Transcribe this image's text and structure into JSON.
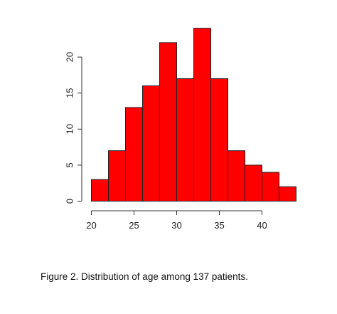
{
  "figure": {
    "caption": "Figure 2. Distribution of age among 137 patients."
  },
  "chart_data": {
    "type": "bar",
    "subtype": "histogram",
    "bin_width": 2,
    "bins": [
      {
        "start": 20,
        "end": 22,
        "count": 3
      },
      {
        "start": 22,
        "end": 24,
        "count": 7
      },
      {
        "start": 24,
        "end": 26,
        "count": 13
      },
      {
        "start": 26,
        "end": 28,
        "count": 16
      },
      {
        "start": 28,
        "end": 30,
        "count": 22
      },
      {
        "start": 30,
        "end": 32,
        "count": 17
      },
      {
        "start": 32,
        "end": 34,
        "count": 24
      },
      {
        "start": 34,
        "end": 36,
        "count": 17
      },
      {
        "start": 36,
        "end": 38,
        "count": 7
      },
      {
        "start": 38,
        "end": 40,
        "count": 5
      },
      {
        "start": 40,
        "end": 42,
        "count": 4
      },
      {
        "start": 42,
        "end": 44,
        "count": 2
      }
    ],
    "xlim": [
      20,
      44
    ],
    "ylim": [
      0,
      24
    ],
    "x_ticks": [
      20,
      25,
      30,
      35,
      40
    ],
    "y_ticks": [
      0,
      5,
      10,
      15,
      20
    ],
    "bar_color": "#ff0000",
    "bar_edge_color": "#222222",
    "title": "",
    "xlabel": "",
    "ylabel": "",
    "grid": false,
    "legend": "none"
  }
}
